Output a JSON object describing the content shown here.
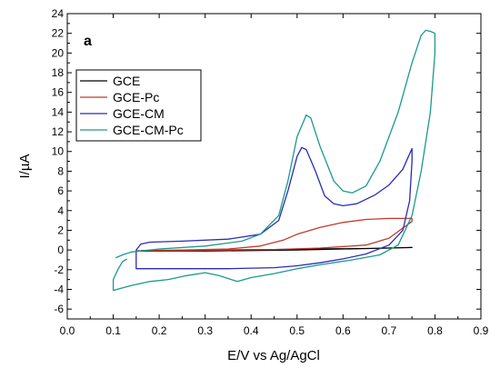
{
  "chart_data": {
    "type": "line",
    "panel_label": "a",
    "title": "",
    "xlabel": "E/V vs Ag/AgCl",
    "ylabel": "I/µA",
    "xlim": [
      0.0,
      0.9
    ],
    "ylim": [
      -7,
      24
    ],
    "x_ticks": [
      0.0,
      0.1,
      0.2,
      0.3,
      0.4,
      0.5,
      0.6,
      0.7,
      0.8,
      0.9
    ],
    "x_tick_labels": [
      "0.0",
      "0.1",
      "0.2",
      "0.3",
      "0.4",
      "0.5",
      "0.6",
      "0.7",
      "0.8",
      "0.9"
    ],
    "y_ticks": [
      -6,
      -4,
      -2,
      0,
      2,
      4,
      6,
      8,
      10,
      12,
      14,
      16,
      18,
      20,
      22,
      24
    ],
    "y_tick_labels": [
      "-6",
      "-4",
      "-2",
      "0",
      "2",
      "4",
      "6",
      "8",
      "10",
      "12",
      "14",
      "16",
      "18",
      "20",
      "22",
      "24"
    ],
    "grid": false,
    "legend_position": "top-left",
    "series": [
      {
        "name": "GCE",
        "color": "#000000",
        "points": [
          [
            0.15,
            -0.1
          ],
          [
            0.25,
            -0.05
          ],
          [
            0.35,
            0.0
          ],
          [
            0.45,
            0.05
          ],
          [
            0.55,
            0.1
          ],
          [
            0.65,
            0.15
          ],
          [
            0.75,
            0.25
          ],
          [
            0.7,
            0.2
          ],
          [
            0.6,
            0.1
          ],
          [
            0.5,
            0.0
          ],
          [
            0.4,
            -0.05
          ],
          [
            0.3,
            -0.1
          ],
          [
            0.2,
            -0.1
          ],
          [
            0.15,
            -0.1
          ]
        ]
      },
      {
        "name": "GCE-Pc",
        "color": "#c0392b",
        "points": [
          [
            0.16,
            -0.05
          ],
          [
            0.25,
            0.0
          ],
          [
            0.35,
            0.1
          ],
          [
            0.42,
            0.4
          ],
          [
            0.47,
            1.0
          ],
          [
            0.5,
            1.6
          ],
          [
            0.55,
            2.3
          ],
          [
            0.6,
            2.8
          ],
          [
            0.65,
            3.1
          ],
          [
            0.7,
            3.2
          ],
          [
            0.75,
            3.2
          ],
          [
            0.75,
            2.9
          ],
          [
            0.7,
            1.2
          ],
          [
            0.65,
            0.5
          ],
          [
            0.55,
            0.2
          ],
          [
            0.45,
            0.05
          ],
          [
            0.35,
            0.0
          ],
          [
            0.25,
            -0.05
          ],
          [
            0.16,
            -0.05
          ]
        ]
      },
      {
        "name": "GCE-CM",
        "color": "#2b2bb8",
        "points": [
          [
            0.15,
            0.0
          ],
          [
            0.16,
            0.6
          ],
          [
            0.18,
            0.8
          ],
          [
            0.25,
            0.9
          ],
          [
            0.35,
            1.1
          ],
          [
            0.42,
            1.6
          ],
          [
            0.46,
            3.0
          ],
          [
            0.48,
            6.0
          ],
          [
            0.5,
            9.5
          ],
          [
            0.51,
            10.4
          ],
          [
            0.52,
            10.2
          ],
          [
            0.54,
            8.0
          ],
          [
            0.56,
            5.5
          ],
          [
            0.58,
            4.7
          ],
          [
            0.6,
            4.5
          ],
          [
            0.63,
            4.7
          ],
          [
            0.67,
            5.6
          ],
          [
            0.7,
            6.6
          ],
          [
            0.73,
            8.2
          ],
          [
            0.75,
            10.3
          ],
          [
            0.75,
            9.0
          ],
          [
            0.745,
            5.0
          ],
          [
            0.73,
            2.0
          ],
          [
            0.7,
            0.5
          ],
          [
            0.65,
            -0.4
          ],
          [
            0.6,
            -0.9
          ],
          [
            0.55,
            -1.3
          ],
          [
            0.5,
            -1.6
          ],
          [
            0.45,
            -1.8
          ],
          [
            0.35,
            -1.9
          ],
          [
            0.25,
            -1.9
          ],
          [
            0.18,
            -1.9
          ],
          [
            0.15,
            -1.9
          ],
          [
            0.15,
            0.0
          ]
        ]
      },
      {
        "name": "GCE-CM-Pc",
        "color": "#1a9a8a",
        "points": [
          [
            0.105,
            -0.8
          ],
          [
            0.12,
            -0.5
          ],
          [
            0.14,
            -0.2
          ],
          [
            0.2,
            0.1
          ],
          [
            0.3,
            0.4
          ],
          [
            0.38,
            0.9
          ],
          [
            0.42,
            1.6
          ],
          [
            0.46,
            3.5
          ],
          [
            0.48,
            7.0
          ],
          [
            0.5,
            11.5
          ],
          [
            0.52,
            13.7
          ],
          [
            0.53,
            13.4
          ],
          [
            0.55,
            10.5
          ],
          [
            0.58,
            7.0
          ],
          [
            0.6,
            6.0
          ],
          [
            0.62,
            5.8
          ],
          [
            0.65,
            6.5
          ],
          [
            0.68,
            9.0
          ],
          [
            0.72,
            14.0
          ],
          [
            0.75,
            19.0
          ],
          [
            0.77,
            21.8
          ],
          [
            0.78,
            22.3
          ],
          [
            0.79,
            22.2
          ],
          [
            0.8,
            22.0
          ],
          [
            0.8,
            20.0
          ],
          [
            0.79,
            14.0
          ],
          [
            0.77,
            8.0
          ],
          [
            0.75,
            3.5
          ],
          [
            0.72,
            0.5
          ],
          [
            0.68,
            -0.5
          ],
          [
            0.62,
            -1.0
          ],
          [
            0.55,
            -1.5
          ],
          [
            0.5,
            -1.9
          ],
          [
            0.45,
            -2.4
          ],
          [
            0.4,
            -2.8
          ],
          [
            0.37,
            -3.2
          ],
          [
            0.33,
            -2.6
          ],
          [
            0.3,
            -2.3
          ],
          [
            0.26,
            -2.6
          ],
          [
            0.22,
            -3.0
          ],
          [
            0.18,
            -3.2
          ],
          [
            0.14,
            -3.6
          ],
          [
            0.1,
            -4.1
          ],
          [
            0.1,
            -3.0
          ],
          [
            0.11,
            -2.0
          ],
          [
            0.12,
            -1.2
          ],
          [
            0.13,
            -0.9
          ]
        ]
      }
    ]
  }
}
